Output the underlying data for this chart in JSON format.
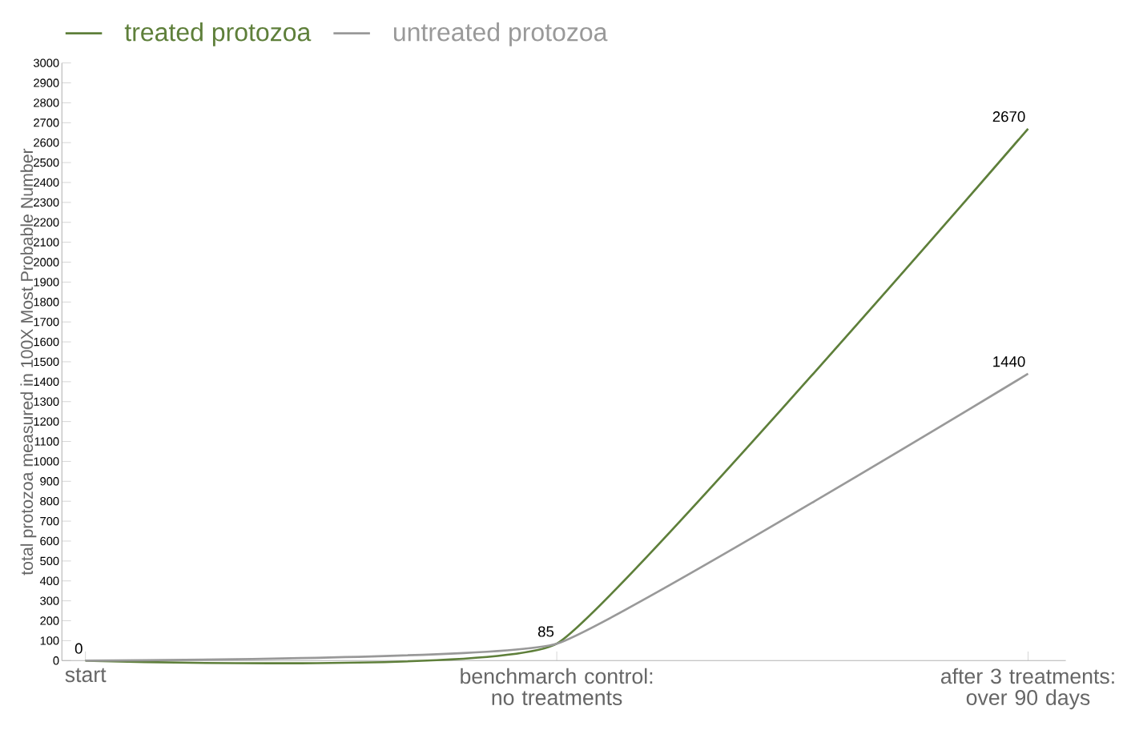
{
  "chart_data": {
    "type": "line",
    "ylabel": "total protozoa measured in 100X Most Probable Number",
    "categories": [
      "start",
      "benchmarch control: no treatments",
      "after 3 treatments: over 90 days"
    ],
    "series": [
      {
        "name": "treated protozoa",
        "color": "#5e7f3a",
        "values": [
          0,
          85,
          2670
        ],
        "value_labels": [
          "0",
          "85",
          "2670"
        ]
      },
      {
        "name": "untreated protozoa",
        "color": "#999999",
        "values": [
          0,
          85,
          1440
        ],
        "value_labels": [
          null,
          null,
          "1440"
        ]
      }
    ],
    "ylim": [
      0,
      3000
    ],
    "yticks": [
      0,
      100,
      200,
      300,
      400,
      500,
      600,
      700,
      800,
      900,
      1000,
      1100,
      1200,
      1300,
      1400,
      1500,
      1600,
      1700,
      1800,
      1900,
      2000,
      2100,
      2200,
      2300,
      2400,
      2500,
      2600,
      2700,
      2800,
      2900,
      3000
    ],
    "grid": false,
    "legend": "top left",
    "marker": "none",
    "line_style": "solid"
  }
}
